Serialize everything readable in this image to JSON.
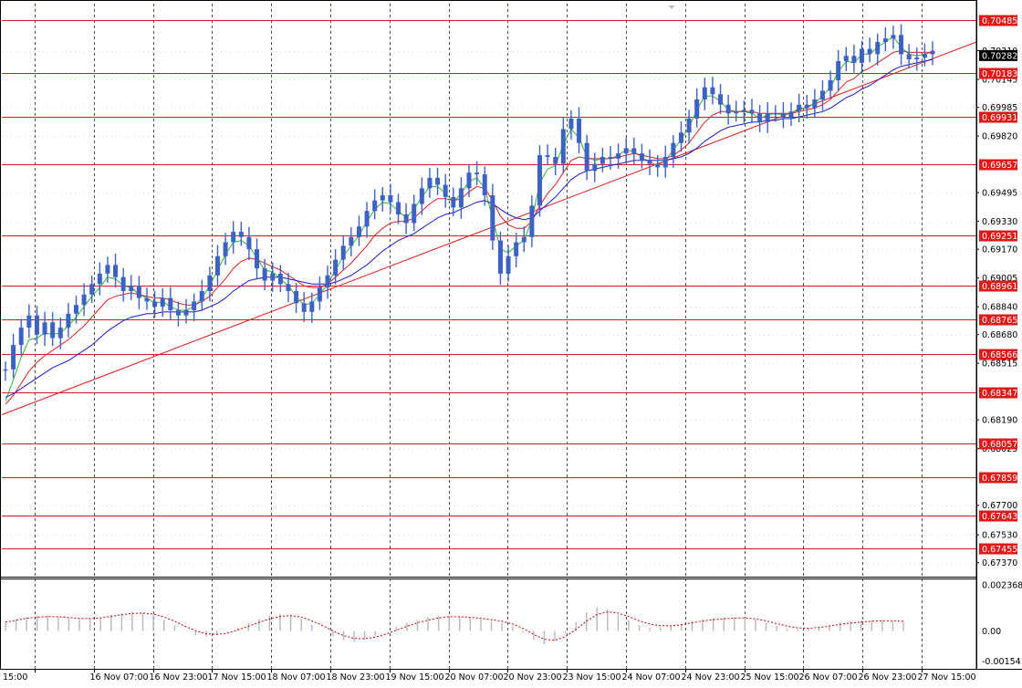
{
  "chart_data": {
    "type": "line",
    "title": "",
    "xlabel": "",
    "ylabel": "",
    "ylim": [
      0.6729,
      0.7058
    ],
    "grid": true,
    "y_tick_labels": [
      "0.70310",
      "0.70145",
      "0.69985",
      "0.69820",
      "0.69495",
      "0.69330",
      "0.69170",
      "0.69005",
      "0.68840",
      "0.68680",
      "0.68515",
      "0.68190",
      "0.68025",
      "0.67700",
      "0.67530",
      "0.67370"
    ],
    "x_tick_labels": [
      "15:00",
      "16 Nov 07:00",
      "16 Nov 23:00",
      "17 Nov 15:00",
      "18 Nov 07:00",
      "18 Nov 23:00",
      "19 Nov 15:00",
      "20 Nov 07:00",
      "20 Nov 23:00",
      "23 Nov 15:00",
      "24 Nov 07:00",
      "24 Nov 23:00",
      "25 Nov 15:00",
      "26 Nov 07:00",
      "26 Nov 23:00",
      "27 Nov 15:00"
    ],
    "horizontal_levels": [
      "0.70485",
      "0.70183",
      "0.69931",
      "0.69657",
      "0.69251",
      "0.68961",
      "0.68765",
      "0.68566",
      "0.68347",
      "0.68057",
      "0.67859",
      "0.67643",
      "0.67455"
    ],
    "current_price": "0.70282",
    "trend_line": {
      "from": 0.6822,
      "to": 0.7036
    },
    "series": [
      {
        "style": "candles",
        "color": "#3d62c4",
        "values": [
          0.6848,
          0.6862,
          0.6872,
          0.6879,
          0.6868,
          0.6875,
          0.6866,
          0.6872,
          0.688,
          0.6885,
          0.6891,
          0.6897,
          0.6903,
          0.6908,
          0.6901,
          0.6893,
          0.6896,
          0.6889,
          0.6887,
          0.6884,
          0.6889,
          0.6882,
          0.6879,
          0.6882,
          0.6887,
          0.6893,
          0.6902,
          0.6913,
          0.6921,
          0.6927,
          0.6924,
          0.6917,
          0.6906,
          0.6899,
          0.6903,
          0.6897,
          0.6893,
          0.6886,
          0.6881,
          0.6887,
          0.6895,
          0.6902,
          0.6911,
          0.6919,
          0.6924,
          0.693,
          0.6939,
          0.6945,
          0.6948,
          0.6944,
          0.6937,
          0.6932,
          0.6943,
          0.6952,
          0.6958,
          0.6954,
          0.6947,
          0.6941,
          0.6952,
          0.6961,
          0.696,
          0.6948,
          0.6922,
          0.6903,
          0.6913,
          0.6921,
          0.6924,
          0.6942,
          0.6971,
          0.697,
          0.6966,
          0.6986,
          0.6992,
          0.6978,
          0.6962,
          0.6966,
          0.697,
          0.6969,
          0.6972,
          0.6975,
          0.6972,
          0.6968,
          0.6966,
          0.6964,
          0.697,
          0.6978,
          0.6984,
          0.6992,
          0.7003,
          0.701,
          0.7006,
          0.7,
          0.6995,
          0.6996,
          0.6997,
          0.6995,
          0.699,
          0.6995,
          0.6995,
          0.6993,
          0.6996,
          0.7,
          0.6998,
          0.7003,
          0.7008,
          0.7014,
          0.7025,
          0.7028,
          0.7024,
          0.7032,
          0.7029,
          0.7036,
          0.7038,
          0.704,
          0.7029,
          0.7026,
          0.7027,
          0.7029,
          0.7031
        ]
      },
      {
        "style": "line",
        "color": "#2db82d",
        "values": [
          0.683,
          0.6842,
          0.6855,
          0.6865,
          0.6866,
          0.6869,
          0.6868,
          0.6869,
          0.6873,
          0.6878,
          0.6884,
          0.689,
          0.6895,
          0.6901,
          0.69,
          0.6896,
          0.6895,
          0.6891,
          0.6889,
          0.6886,
          0.6887,
          0.6884,
          0.6882,
          0.6882,
          0.6884,
          0.6889,
          0.6896,
          0.6905,
          0.6914,
          0.6921,
          0.6922,
          0.6919,
          0.6912,
          0.6905,
          0.6904,
          0.69,
          0.6896,
          0.689,
          0.6885,
          0.6886,
          0.6891,
          0.6897,
          0.6905,
          0.6913,
          0.6919,
          0.6925,
          0.6933,
          0.694,
          0.6944,
          0.6943,
          0.6939,
          0.6935,
          0.694,
          0.6947,
          0.6953,
          0.6953,
          0.6949,
          0.6944,
          0.6949,
          0.6956,
          0.6958,
          0.6952,
          0.6935,
          0.6917,
          0.6915,
          0.6919,
          0.6922,
          0.6934,
          0.6955,
          0.6963,
          0.6965,
          0.6977,
          0.6986,
          0.6981,
          0.697,
          0.6968,
          0.6969,
          0.6969,
          0.6971,
          0.6974,
          0.6973,
          0.697,
          0.6967,
          0.6965,
          0.6968,
          0.6974,
          0.698,
          0.6987,
          0.6997,
          0.7005,
          0.7005,
          0.7002,
          0.6997,
          0.6996,
          0.6996,
          0.6995,
          0.6992,
          0.6994,
          0.6995,
          0.6994,
          0.6995,
          0.6998,
          0.6998,
          0.7001,
          0.7005,
          0.701,
          0.7019,
          0.7025,
          0.7024,
          0.7029,
          0.7029,
          0.7033,
          0.7036,
          0.7039,
          0.7033,
          0.7029,
          0.7028,
          0.7029,
          0.703
        ]
      },
      {
        "style": "line",
        "color": "#e02020",
        "values": [
          0.6828,
          0.6833,
          0.684,
          0.6847,
          0.6852,
          0.6856,
          0.6859,
          0.6862,
          0.6865,
          0.6869,
          0.6873,
          0.6878,
          0.6883,
          0.6888,
          0.689,
          0.6891,
          0.6892,
          0.6891,
          0.689,
          0.6889,
          0.6889,
          0.6888,
          0.6886,
          0.6885,
          0.6885,
          0.6887,
          0.689,
          0.6895,
          0.69,
          0.6906,
          0.691,
          0.6912,
          0.6911,
          0.6909,
          0.6907,
          0.6905,
          0.6902,
          0.6899,
          0.6896,
          0.6895,
          0.6895,
          0.6897,
          0.6901,
          0.6905,
          0.6909,
          0.6914,
          0.6919,
          0.6925,
          0.6929,
          0.6932,
          0.6933,
          0.6933,
          0.6935,
          0.6939,
          0.6943,
          0.6946,
          0.6946,
          0.6945,
          0.6946,
          0.695,
          0.6953,
          0.6952,
          0.6945,
          0.6936,
          0.6931,
          0.6929,
          0.6929,
          0.6933,
          0.6942,
          0.6949,
          0.6954,
          0.6961,
          0.6968,
          0.697,
          0.6969,
          0.6969,
          0.6969,
          0.6969,
          0.697,
          0.6971,
          0.6972,
          0.6971,
          0.697,
          0.6969,
          0.6969,
          0.6971,
          0.6974,
          0.6978,
          0.6984,
          0.699,
          0.6994,
          0.6996,
          0.6996,
          0.6996,
          0.6996,
          0.6996,
          0.6995,
          0.6995,
          0.6995,
          0.6995,
          0.6995,
          0.6996,
          0.6997,
          0.6998,
          0.7,
          0.7003,
          0.7008,
          0.7013,
          0.7015,
          0.7019,
          0.7021,
          0.7024,
          0.7027,
          0.703,
          0.7031,
          0.703,
          0.703,
          0.703,
          0.703
        ]
      },
      {
        "style": "line",
        "color": "#1a1ac8",
        "values": [
          0.6832,
          0.6834,
          0.6837,
          0.684,
          0.6843,
          0.6846,
          0.6849,
          0.6851,
          0.6853,
          0.6856,
          0.6859,
          0.6862,
          0.6866,
          0.687,
          0.6873,
          0.6876,
          0.6878,
          0.6879,
          0.688,
          0.688,
          0.6881,
          0.6881,
          0.6881,
          0.6881,
          0.6881,
          0.6882,
          0.6884,
          0.6886,
          0.6889,
          0.6893,
          0.6896,
          0.6899,
          0.69,
          0.6901,
          0.6901,
          0.6901,
          0.69,
          0.6899,
          0.6898,
          0.6897,
          0.6897,
          0.6897,
          0.6898,
          0.69,
          0.6902,
          0.6905,
          0.6908,
          0.6912,
          0.6916,
          0.6919,
          0.6922,
          0.6924,
          0.6926,
          0.6929,
          0.6932,
          0.6935,
          0.6937,
          0.6938,
          0.694,
          0.6942,
          0.6944,
          0.6945,
          0.6943,
          0.694,
          0.6937,
          0.6935,
          0.6934,
          0.6935,
          0.6939,
          0.6943,
          0.6947,
          0.6952,
          0.6957,
          0.696,
          0.6962,
          0.6963,
          0.6964,
          0.6965,
          0.6966,
          0.6967,
          0.6968,
          0.6968,
          0.6968,
          0.6968,
          0.6968,
          0.6969,
          0.697,
          0.6972,
          0.6975,
          0.6979,
          0.6982,
          0.6985,
          0.6987,
          0.6988,
          0.6989,
          0.699,
          0.699,
          0.6991,
          0.6991,
          0.6992,
          0.6992,
          0.6993,
          0.6994,
          0.6995,
          0.6996,
          0.6998,
          0.7001,
          0.7004,
          0.7006,
          0.7009,
          0.7011,
          0.7014,
          0.7017,
          0.702,
          0.7022,
          0.7023,
          0.7024,
          0.7025,
          0.7026
        ]
      }
    ],
    "sub_chart": {
      "type": "histogram",
      "y_tick_labels": [
        "0.002368",
        "0.00",
        "-0.001541"
      ],
      "ylim": [
        -0.00195,
        0.0027
      ],
      "hist_color": "#b8b8b8",
      "signal_color": "#cc0000",
      "values": [
        0.00045,
        0.0006,
        0.00072,
        0.00078,
        0.00077,
        0.00072,
        0.00065,
        0.0006,
        0.00062,
        0.0007,
        0.00082,
        0.00092,
        0.00098,
        0.00095,
        0.00082,
        0.00058,
        0.00028,
        -2e-05,
        -0.00022,
        -0.0003,
        -0.00022,
        -5e-05,
        0.00018,
        0.0004,
        0.00062,
        0.0008,
        0.00088,
        0.00082,
        0.00062,
        0.00032,
        2e-05,
        -0.00028,
        -0.00048,
        -0.00055,
        -0.00045,
        -0.00025,
        0.0,
        0.00022,
        0.00042,
        0.00058,
        0.0007,
        0.00078,
        0.00078,
        0.00072,
        0.00066,
        0.0006,
        0.00052,
        0.00042,
        0.00022,
        -0.0001,
        -0.00045,
        -0.00068,
        -0.00052,
        -0.00012,
        0.00045,
        0.00095,
        0.0012,
        0.0011,
        0.00085,
        0.00055,
        0.0003,
        0.00018,
        0.00018,
        0.00025,
        0.00038,
        0.00052,
        0.0006,
        0.00064,
        0.00068,
        0.0007,
        0.00068,
        0.00058,
        0.00042,
        0.00025,
        0.00012,
        8e-05,
        0.00012,
        0.00022,
        0.00032,
        0.00042,
        0.00048,
        0.00052,
        0.00055,
        0.00056,
        0.00052,
        0.00048
      ],
      "signal": [
        0.00045,
        0.00055,
        0.00065,
        0.00071,
        0.00074,
        0.00073,
        0.00069,
        0.00065,
        0.00064,
        0.00067,
        0.00075,
        0.00083,
        0.0009,
        0.00092,
        0.00087,
        0.00072,
        0.0005,
        0.00024,
        2e-05,
        -0.00014,
        -0.00018,
        -0.00012,
        6e-05,
        0.00024,
        0.00044,
        0.00062,
        0.00075,
        0.00079,
        0.00072,
        0.00052,
        0.00028,
        0.0,
        -0.00024,
        -0.00038,
        -0.0004,
        -0.00032,
        -0.00016,
        4e-05,
        0.00024,
        0.00042,
        0.00056,
        0.00067,
        0.00073,
        0.00073,
        0.0007,
        0.00065,
        0.00058,
        0.0005,
        0.00036,
        0.00013,
        -0.00018,
        -0.00043,
        -0.00048,
        -0.0003,
        8e-05,
        0.0005,
        0.00085,
        0.00098,
        0.00092,
        0.00074,
        0.00052,
        0.00035,
        0.00027,
        0.00026,
        0.00032,
        0.00042,
        0.00051,
        0.00058,
        0.00063,
        0.00066,
        0.00067,
        0.00062,
        0.00052,
        0.00038,
        0.00025,
        0.00016,
        0.00014,
        0.00018,
        0.00025,
        0.00034,
        0.00041,
        0.00046,
        0.0005,
        0.00053,
        0.00053,
        0.0005
      ]
    }
  }
}
